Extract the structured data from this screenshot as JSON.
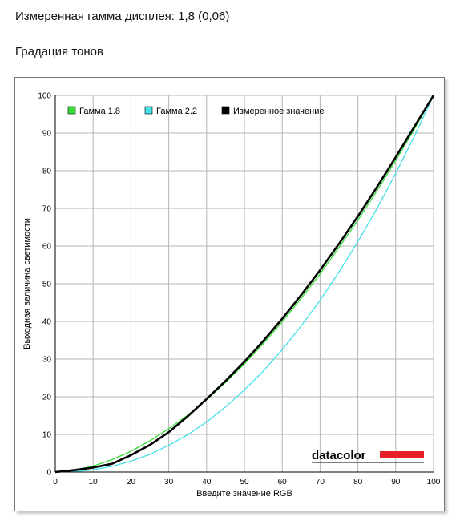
{
  "header": {
    "measured_label": "Измеренная гамма дисплея: 1,8 (0,06)",
    "section_title": "Градация тонов"
  },
  "brand": {
    "logo_text": "datacolor",
    "accent_color": "#e8202a"
  },
  "chart_data": {
    "type": "line",
    "title": "",
    "xlabel": "Введите значение RGB",
    "ylabel": "Выходная величина светимости",
    "xlim": [
      0,
      100
    ],
    "ylim": [
      0,
      100
    ],
    "x_ticks": [
      0,
      10,
      20,
      30,
      40,
      50,
      60,
      70,
      80,
      90,
      100
    ],
    "y_ticks": [
      0,
      10,
      20,
      30,
      40,
      50,
      60,
      70,
      80,
      90,
      100
    ],
    "grid": true,
    "legend_position": "top-left",
    "series": [
      {
        "name": "Гамма 1.8",
        "color": "#33dd33",
        "x": [
          0,
          5,
          10,
          15,
          20,
          25,
          30,
          35,
          40,
          45,
          50,
          55,
          60,
          65,
          70,
          75,
          80,
          85,
          90,
          95,
          100
        ],
        "y": [
          0,
          0.5,
          1.6,
          3.3,
          5.5,
          8.3,
          11.5,
          15.1,
          19.2,
          23.8,
          28.7,
          34.1,
          39.9,
          46.1,
          52.6,
          59.6,
          66.9,
          74.6,
          82.7,
          91.2,
          100
        ]
      },
      {
        "name": "Гамма 2.2",
        "color": "#44e0e8",
        "x": [
          0,
          5,
          10,
          15,
          20,
          25,
          30,
          35,
          40,
          45,
          50,
          55,
          60,
          65,
          70,
          75,
          80,
          85,
          90,
          95,
          100
        ],
        "y": [
          0,
          0.1,
          0.6,
          1.5,
          2.9,
          4.7,
          7.1,
          9.9,
          13.3,
          17.3,
          21.8,
          26.8,
          32.5,
          38.8,
          45.6,
          53.1,
          61.2,
          69.9,
          79.3,
          89.3,
          100
        ]
      },
      {
        "name": "Измеренное значение",
        "color": "#000000",
        "x": [
          0,
          5,
          10,
          15,
          20,
          25,
          30,
          35,
          40,
          45,
          50,
          55,
          60,
          65,
          70,
          75,
          80,
          85,
          90,
          95,
          100
        ],
        "y": [
          0,
          0.5,
          1.2,
          2.2,
          4.5,
          7.2,
          10.6,
          14.8,
          19.4,
          24.2,
          29.3,
          34.8,
          40.7,
          47.0,
          53.6,
          60.6,
          67.9,
          75.6,
          83.6,
          91.8,
          100
        ]
      }
    ]
  }
}
